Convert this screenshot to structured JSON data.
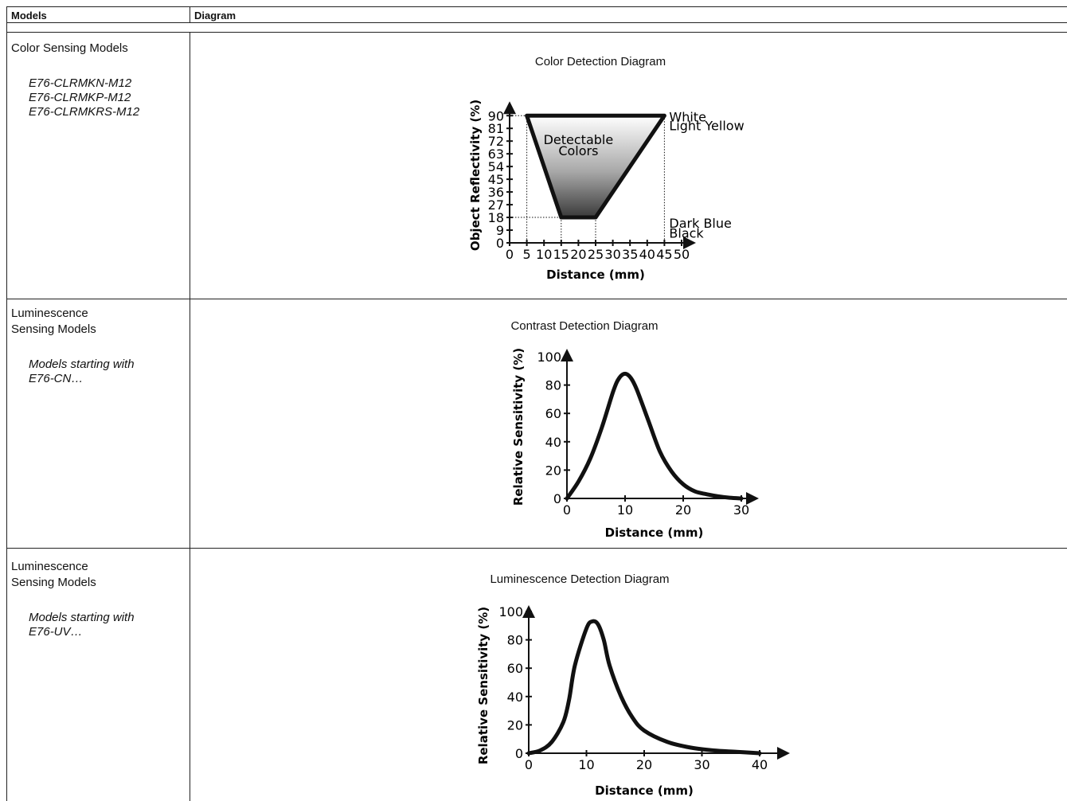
{
  "header": {
    "models_label": "Models",
    "diagram_label": "Diagram"
  },
  "rows": [
    {
      "title_lines": [
        "Color Sensing Models"
      ],
      "model_lines": [
        "E76-CLRMKN-M12",
        "E76-CLRMKP-M12",
        "E76-CLRMKRS-M12"
      ],
      "diagram_title": "Color Detection Diagram"
    },
    {
      "title_lines": [
        "Luminescence",
        "Sensing Models"
      ],
      "model_lines": [
        "Models starting with",
        "E76-CN…"
      ],
      "diagram_title": "Contrast Detection Diagram"
    },
    {
      "title_lines": [
        "Luminescence",
        "Sensing Models"
      ],
      "model_lines": [
        "Models starting with",
        "E76-UV…"
      ],
      "diagram_title": "Luminescence Detection Diagram"
    }
  ],
  "chart_data": [
    {
      "type": "area",
      "title": "Color Detection Diagram",
      "xlabel": "Distance (mm)",
      "ylabel": "Object Reflectivity (%)",
      "xticks": [
        "0",
        "5",
        "10",
        "15",
        "20",
        "25",
        "30",
        "35",
        "40",
        "45",
        "50"
      ],
      "yticks": [
        "0",
        "9",
        "18",
        "27",
        "36",
        "45",
        "54",
        "63",
        "72",
        "81",
        "90"
      ],
      "xlim": [
        0,
        50
      ],
      "ylim": [
        0,
        90
      ],
      "region_label": [
        "Detectable",
        "Colors"
      ],
      "region": [
        [
          5,
          90
        ],
        [
          45,
          90
        ],
        [
          25,
          18
        ],
        [
          15,
          18
        ]
      ],
      "annotations": [
        "White",
        "Light Yellow",
        "Dark Blue",
        "Black"
      ]
    },
    {
      "type": "line",
      "title": "Contrast Detection Diagram",
      "xlabel": "Distance (mm)",
      "ylabel": "Relative Sensitivity (%)",
      "xticks": [
        "0",
        "10",
        "20",
        "30"
      ],
      "yticks": [
        "0",
        "20",
        "40",
        "60",
        "80",
        "100"
      ],
      "xlim": [
        0,
        30
      ],
      "ylim": [
        0,
        100
      ],
      "x": [
        0,
        2,
        4,
        6,
        8,
        9,
        10,
        11,
        12,
        14,
        16,
        18,
        20,
        22,
        24,
        26,
        28,
        30
      ],
      "y": [
        0,
        12,
        28,
        50,
        76,
        85,
        88,
        85,
        77,
        55,
        33,
        19,
        10,
        5,
        3,
        1.5,
        0.5,
        0
      ]
    },
    {
      "type": "line",
      "title": "Luminescence Detection Diagram",
      "xlabel": "Distance (mm)",
      "ylabel": "Relative Sensitivity (%)",
      "xticks": [
        "0",
        "10",
        "20",
        "30",
        "40"
      ],
      "yticks": [
        "0",
        "20",
        "40",
        "60",
        "80",
        "100"
      ],
      "xlim": [
        0,
        40
      ],
      "ylim": [
        0,
        100
      ],
      "x": [
        0,
        2,
        4,
        6,
        7,
        8,
        10,
        11,
        12,
        13,
        14,
        16,
        18,
        20,
        24,
        28,
        32,
        36,
        40
      ],
      "y": [
        0,
        2,
        8,
        22,
        38,
        62,
        88,
        93,
        91,
        80,
        62,
        40,
        25,
        16,
        8,
        4,
        2,
        1,
        0
      ]
    }
  ]
}
